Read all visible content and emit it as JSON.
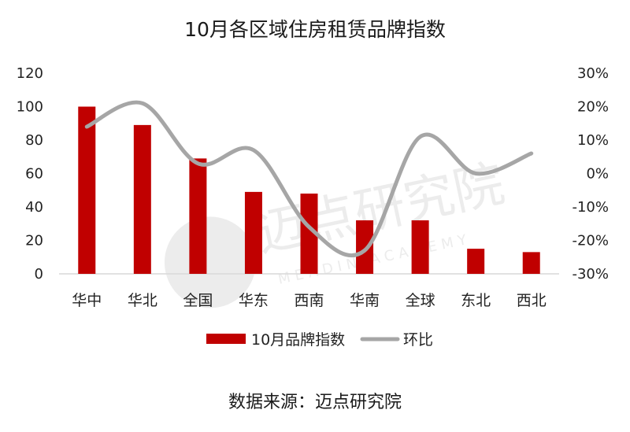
{
  "title": "10月各区域住房租赁品牌指数",
  "source": "数据来源：迈点研究院",
  "watermark": {
    "main": "迈点研究院",
    "sub": "MEADIN ACADEMY"
  },
  "colors": {
    "bar": "#c00000",
    "line": "#a6a6a6",
    "axis": "#d9d9d9",
    "watermark": "#ececec"
  },
  "chart_data": {
    "type": "bar",
    "categories": [
      "华中",
      "华北",
      "全国",
      "华东",
      "西南",
      "华南",
      "全球",
      "东北",
      "西北"
    ],
    "series": [
      {
        "name": "10月品牌指数",
        "type": "bar",
        "axis": "left",
        "values": [
          100,
          89,
          69,
          49,
          48,
          32,
          32,
          15,
          13
        ]
      },
      {
        "name": "环比",
        "type": "line",
        "axis": "right",
        "smooth": true,
        "values": [
          14,
          21,
          3,
          7,
          -16,
          -23,
          11,
          0,
          6
        ]
      }
    ],
    "ylim": [
      0,
      120
    ],
    "yticks": [
      "0",
      "20",
      "40",
      "60",
      "80",
      "100",
      "120"
    ],
    "y2lim": [
      -30,
      30
    ],
    "y2ticks": [
      "-30%",
      "-20%",
      "-10%",
      "0%",
      "10%",
      "20%",
      "30%"
    ],
    "grid": false,
    "legend": "bottom"
  }
}
